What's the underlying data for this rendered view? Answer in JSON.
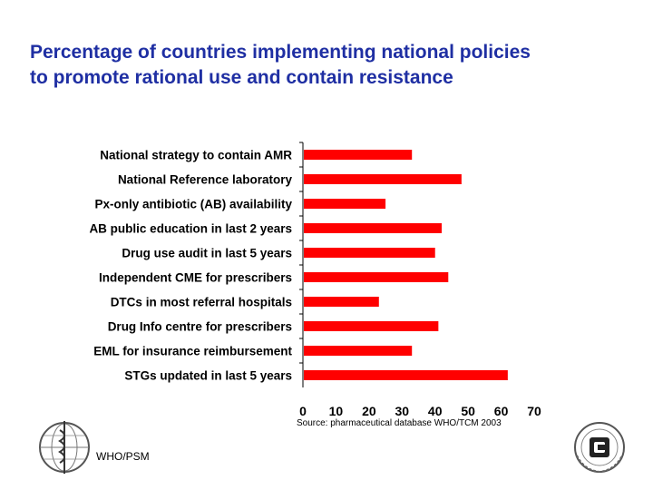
{
  "slide": {
    "title_line1": "Percentage of countries implementing national policies",
    "title_line2": "to promote rational use and contain resistance",
    "source": "Source: pharmaceutical database WHO/TCM 2003",
    "footer": "WHO/PSM"
  },
  "colors": {
    "title": "#1f2fa3",
    "bar": "#ff0000"
  },
  "icons": {
    "left_logo": "who-emblem-icon",
    "right_logo": "un-emblem-icon"
  },
  "chart_data": {
    "type": "bar",
    "orientation": "horizontal",
    "title": "",
    "xlabel": "",
    "ylabel": "",
    "categories": [
      "National strategy to contain AMR",
      "National Reference laboratory",
      "Px-only antibiotic (AB) availability",
      "AB public education in last 2 years",
      "Drug use audit in last 5 years",
      "Independent CME for prescribers",
      "DTCs in most referral hospitals",
      "Drug Info centre for prescribers",
      "EML for insurance reimbursement",
      "STGs updated in last 5 years"
    ],
    "values": [
      33,
      48,
      25,
      42,
      40,
      44,
      23,
      41,
      33,
      62
    ],
    "xlim": [
      0,
      70
    ],
    "xticks": [
      0,
      10,
      20,
      30,
      40,
      50,
      60,
      70
    ],
    "grid": false,
    "legend": "none"
  }
}
